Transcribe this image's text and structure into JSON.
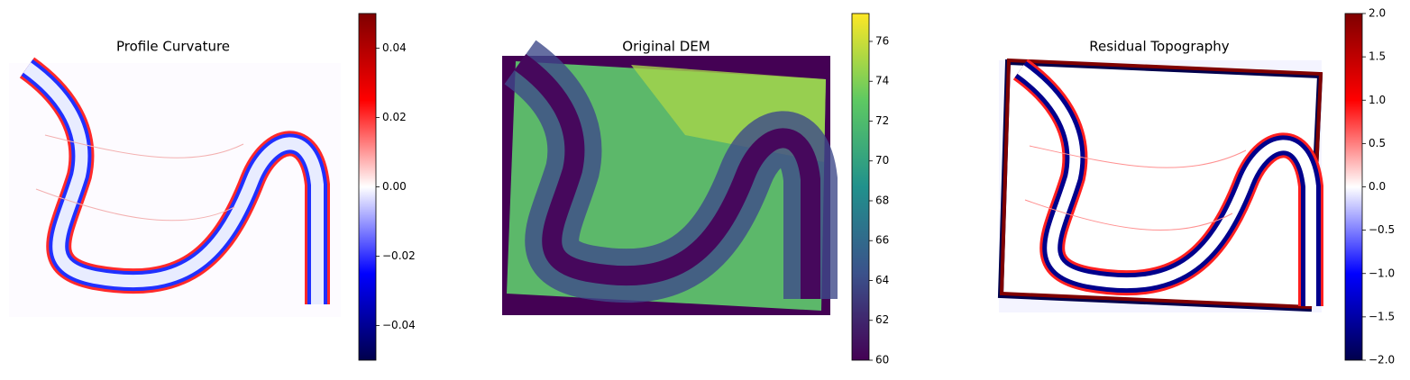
{
  "chart_data": [
    {
      "type": "image",
      "title": "Profile Curvature",
      "colors": [
        "#00004c",
        "#0000ff",
        "#ffffff",
        "#ff0000",
        "#7f0000"
      ],
      "ylim": [
        -0.05,
        0.05
      ],
      "yticks": [
        {
          "value": -0.04,
          "label": "−0.04"
        },
        {
          "value": -0.02,
          "label": "−0.02"
        },
        {
          "value": 0,
          "label": "0.00"
        },
        0.02,
        0.04
      ]
    },
    {
      "type": "image",
      "title": "Original DEM",
      "colors": [
        "#440154",
        "#3b528b",
        "#21918c",
        "#5ec962",
        "#fde725"
      ],
      "ylim": [
        60,
        77.4
      ],
      "yticks": [
        60,
        62,
        64,
        66,
        68,
        70,
        72,
        74,
        76
      ]
    },
    {
      "type": "image",
      "title": "Residual Topography",
      "colors": [
        "#00004c",
        "#0000ff",
        "#ffffff",
        "#ff0000",
        "#7f0000"
      ],
      "ylim": [
        -2,
        2
      ],
      "yticks": [
        {
          "value": -2,
          "label": "−2.0"
        },
        {
          "value": -1.5,
          "label": "−1.5"
        },
        {
          "value": -1,
          "label": "−1.0"
        },
        {
          "value": -0.5,
          "label": "−0.5"
        },
        {
          "value": 0,
          "label": "0.0"
        },
        0.5,
        {
          "value": 1,
          "label": "1.0"
        },
        1.5,
        {
          "value": 2,
          "label": "2.0"
        }
      ]
    }
  ]
}
